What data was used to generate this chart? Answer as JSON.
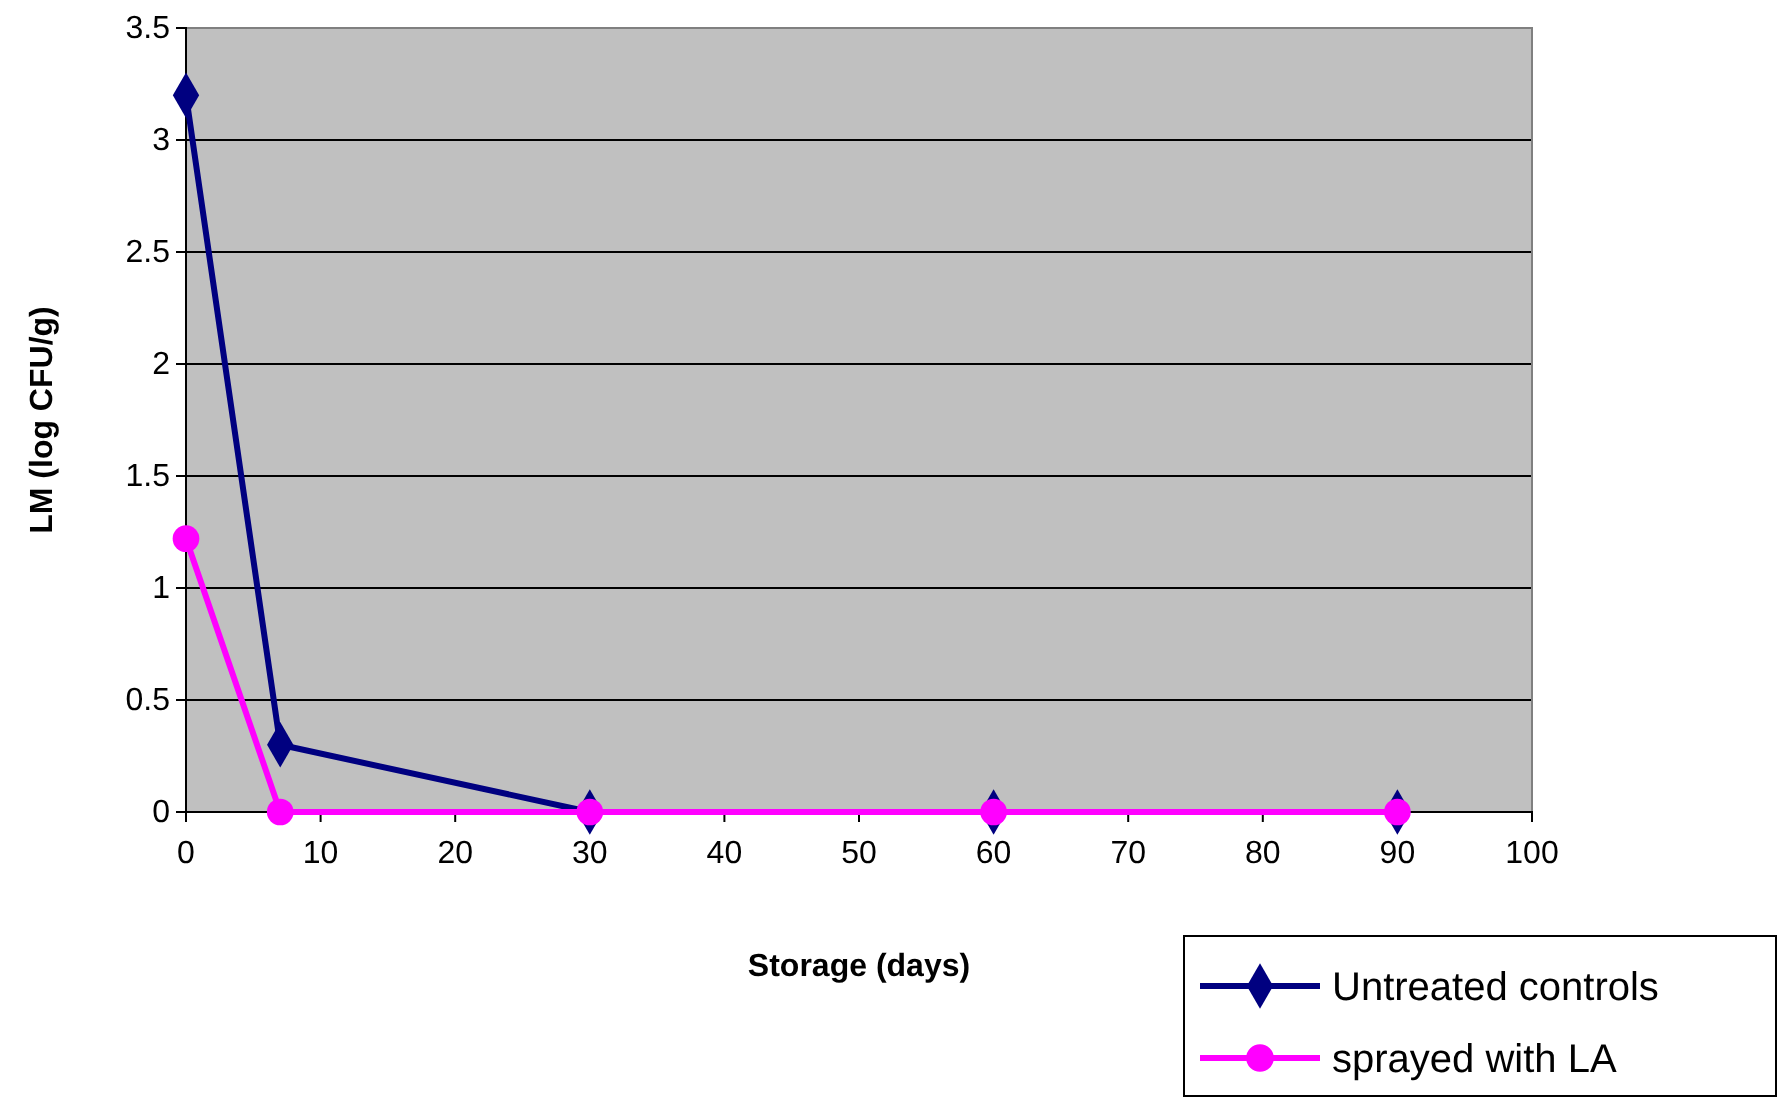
{
  "chart_data": {
    "type": "line",
    "xlabel": "Storage (days)",
    "ylabel": "LM (log CFU/g)",
    "xlim": [
      0,
      100
    ],
    "xticks": [
      0,
      10,
      20,
      30,
      40,
      50,
      60,
      70,
      80,
      90,
      100
    ],
    "ylim": [
      0,
      3.5
    ],
    "yticks": [
      0,
      0.5,
      1,
      1.5,
      2,
      2.5,
      3,
      3.5
    ],
    "grid": "y",
    "legend": "bottom right",
    "line_style": "solid",
    "x": [
      0,
      7,
      30,
      60,
      90
    ],
    "series": [
      {
        "name": "Untreated controls",
        "color": "#000080",
        "marker": "diamond",
        "values": [
          3.2,
          0.3,
          0,
          0,
          0
        ]
      },
      {
        "name": "sprayed with LA",
        "color": "#ff00ff",
        "marker": "circle",
        "values": [
          1.22,
          0,
          0,
          0,
          0
        ]
      }
    ]
  }
}
